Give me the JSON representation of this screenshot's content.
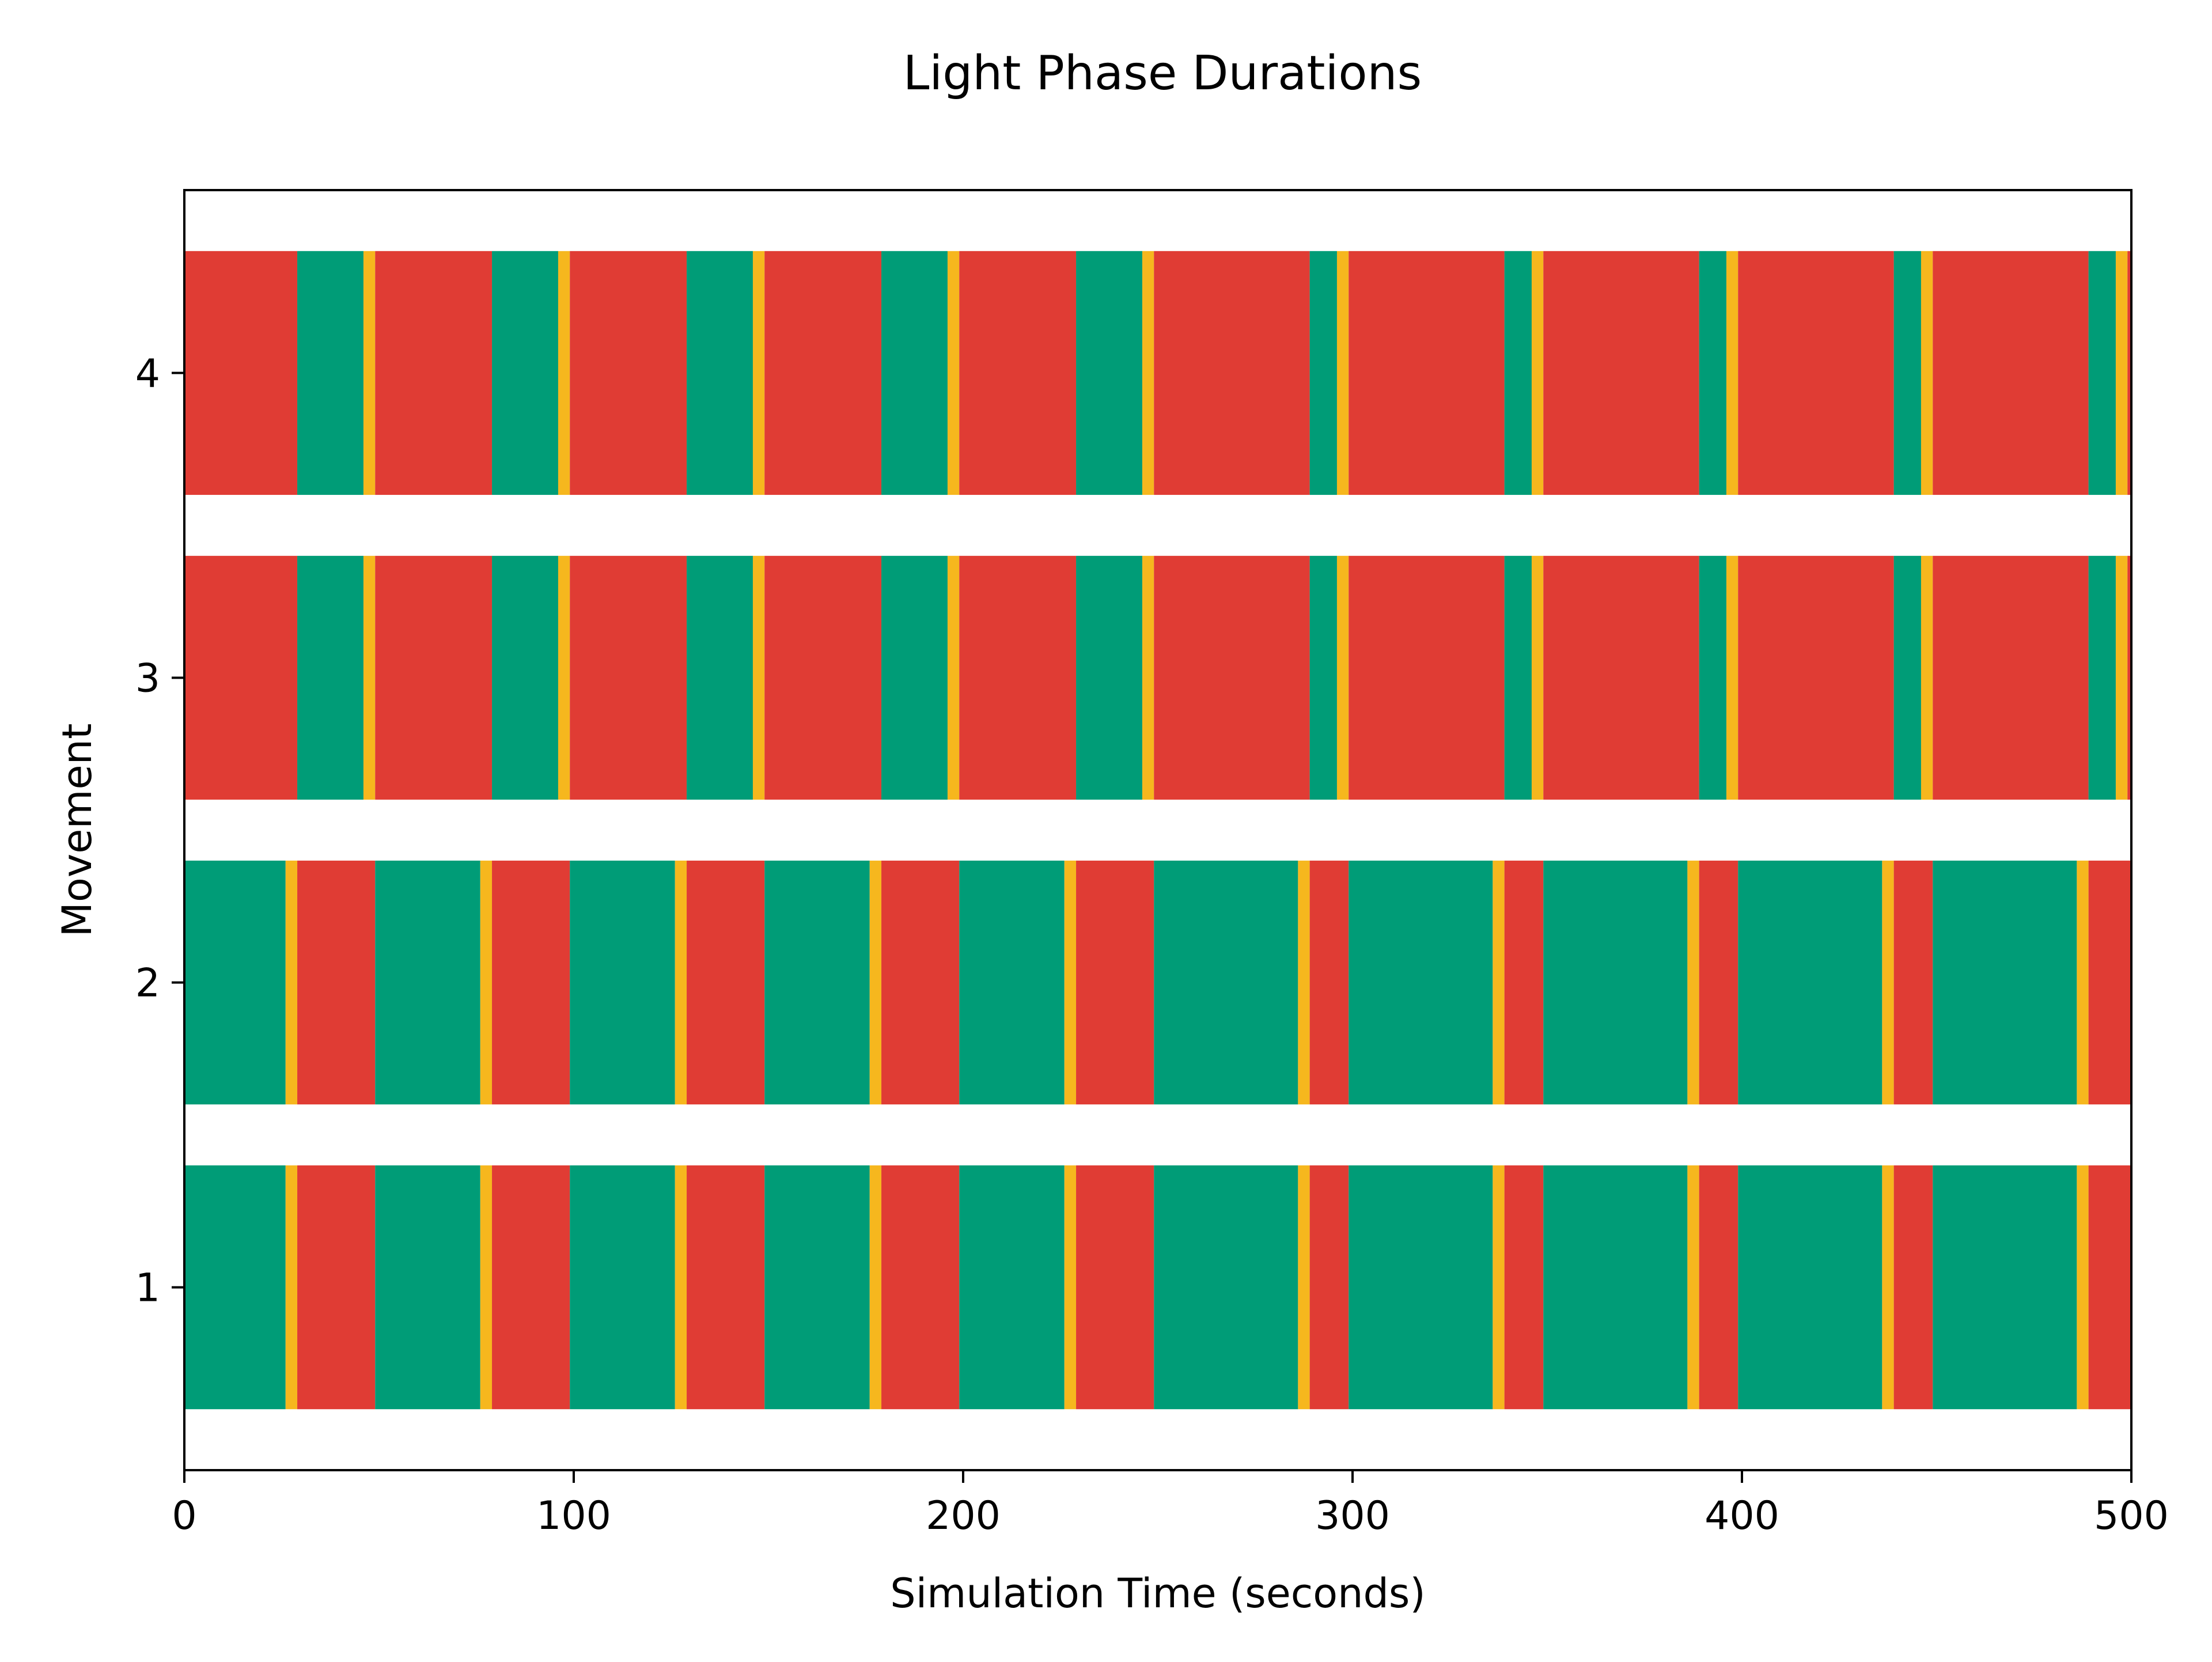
{
  "chart_data": {
    "type": "timeline",
    "title": "Light Phase Durations",
    "xlabel": "Simulation Time (seconds)",
    "ylabel": "Movement",
    "xlim": [
      0,
      500
    ],
    "ylim": [
      0.4,
      4.6
    ],
    "xticks": [
      0,
      100,
      200,
      300,
      400,
      500
    ],
    "grid": false,
    "colors": {
      "red": "#E03C34",
      "green": "#009C77",
      "yellow": "#F6B71E"
    },
    "categories": [
      "1",
      "2",
      "3",
      "4"
    ],
    "series": [
      {
        "category": "1",
        "phases": [
          {
            "color": "green",
            "start": 0,
            "end": 26
          },
          {
            "color": "yellow",
            "start": 26,
            "end": 29
          },
          {
            "color": "red",
            "start": 29,
            "end": 49
          },
          {
            "color": "green",
            "start": 49,
            "end": 76
          },
          {
            "color": "yellow",
            "start": 76,
            "end": 79
          },
          {
            "color": "red",
            "start": 79,
            "end": 99
          },
          {
            "color": "green",
            "start": 99,
            "end": 126
          },
          {
            "color": "yellow",
            "start": 126,
            "end": 129
          },
          {
            "color": "red",
            "start": 129,
            "end": 149
          },
          {
            "color": "green",
            "start": 149,
            "end": 176
          },
          {
            "color": "yellow",
            "start": 176,
            "end": 179
          },
          {
            "color": "red",
            "start": 179,
            "end": 199
          },
          {
            "color": "green",
            "start": 199,
            "end": 226
          },
          {
            "color": "yellow",
            "start": 226,
            "end": 229
          },
          {
            "color": "red",
            "start": 229,
            "end": 249
          },
          {
            "color": "green",
            "start": 249,
            "end": 286
          },
          {
            "color": "yellow",
            "start": 286,
            "end": 289
          },
          {
            "color": "red",
            "start": 289,
            "end": 299
          },
          {
            "color": "green",
            "start": 299,
            "end": 336
          },
          {
            "color": "yellow",
            "start": 336,
            "end": 339
          },
          {
            "color": "red",
            "start": 339,
            "end": 349
          },
          {
            "color": "green",
            "start": 349,
            "end": 386
          },
          {
            "color": "yellow",
            "start": 386,
            "end": 389
          },
          {
            "color": "red",
            "start": 389,
            "end": 399
          },
          {
            "color": "green",
            "start": 399,
            "end": 436
          },
          {
            "color": "yellow",
            "start": 436,
            "end": 439
          },
          {
            "color": "red",
            "start": 439,
            "end": 449
          },
          {
            "color": "green",
            "start": 449,
            "end": 486
          },
          {
            "color": "yellow",
            "start": 486,
            "end": 489
          },
          {
            "color": "red",
            "start": 489,
            "end": 500
          }
        ]
      },
      {
        "category": "2",
        "phases": [
          {
            "color": "green",
            "start": 0,
            "end": 26
          },
          {
            "color": "yellow",
            "start": 26,
            "end": 29
          },
          {
            "color": "red",
            "start": 29,
            "end": 49
          },
          {
            "color": "green",
            "start": 49,
            "end": 76
          },
          {
            "color": "yellow",
            "start": 76,
            "end": 79
          },
          {
            "color": "red",
            "start": 79,
            "end": 99
          },
          {
            "color": "green",
            "start": 99,
            "end": 126
          },
          {
            "color": "yellow",
            "start": 126,
            "end": 129
          },
          {
            "color": "red",
            "start": 129,
            "end": 149
          },
          {
            "color": "green",
            "start": 149,
            "end": 176
          },
          {
            "color": "yellow",
            "start": 176,
            "end": 179
          },
          {
            "color": "red",
            "start": 179,
            "end": 199
          },
          {
            "color": "green",
            "start": 199,
            "end": 226
          },
          {
            "color": "yellow",
            "start": 226,
            "end": 229
          },
          {
            "color": "red",
            "start": 229,
            "end": 249
          },
          {
            "color": "green",
            "start": 249,
            "end": 286
          },
          {
            "color": "yellow",
            "start": 286,
            "end": 289
          },
          {
            "color": "red",
            "start": 289,
            "end": 299
          },
          {
            "color": "green",
            "start": 299,
            "end": 336
          },
          {
            "color": "yellow",
            "start": 336,
            "end": 339
          },
          {
            "color": "red",
            "start": 339,
            "end": 349
          },
          {
            "color": "green",
            "start": 349,
            "end": 386
          },
          {
            "color": "yellow",
            "start": 386,
            "end": 389
          },
          {
            "color": "red",
            "start": 389,
            "end": 399
          },
          {
            "color": "green",
            "start": 399,
            "end": 436
          },
          {
            "color": "yellow",
            "start": 436,
            "end": 439
          },
          {
            "color": "red",
            "start": 439,
            "end": 449
          },
          {
            "color": "green",
            "start": 449,
            "end": 486
          },
          {
            "color": "yellow",
            "start": 486,
            "end": 489
          },
          {
            "color": "red",
            "start": 489,
            "end": 500
          }
        ]
      },
      {
        "category": "3",
        "phases": [
          {
            "color": "red",
            "start": 0,
            "end": 29
          },
          {
            "color": "green",
            "start": 29,
            "end": 46
          },
          {
            "color": "yellow",
            "start": 46,
            "end": 49
          },
          {
            "color": "red",
            "start": 49,
            "end": 79
          },
          {
            "color": "green",
            "start": 79,
            "end": 96
          },
          {
            "color": "yellow",
            "start": 96,
            "end": 99
          },
          {
            "color": "red",
            "start": 99,
            "end": 129
          },
          {
            "color": "green",
            "start": 129,
            "end": 146
          },
          {
            "color": "yellow",
            "start": 146,
            "end": 149
          },
          {
            "color": "red",
            "start": 149,
            "end": 179
          },
          {
            "color": "green",
            "start": 179,
            "end": 196
          },
          {
            "color": "yellow",
            "start": 196,
            "end": 199
          },
          {
            "color": "red",
            "start": 199,
            "end": 229
          },
          {
            "color": "green",
            "start": 229,
            "end": 246
          },
          {
            "color": "yellow",
            "start": 246,
            "end": 249
          },
          {
            "color": "red",
            "start": 249,
            "end": 289
          },
          {
            "color": "green",
            "start": 289,
            "end": 296
          },
          {
            "color": "yellow",
            "start": 296,
            "end": 299
          },
          {
            "color": "red",
            "start": 299,
            "end": 339
          },
          {
            "color": "green",
            "start": 339,
            "end": 346
          },
          {
            "color": "yellow",
            "start": 346,
            "end": 349
          },
          {
            "color": "red",
            "start": 349,
            "end": 389
          },
          {
            "color": "green",
            "start": 389,
            "end": 396
          },
          {
            "color": "yellow",
            "start": 396,
            "end": 399
          },
          {
            "color": "red",
            "start": 399,
            "end": 439
          },
          {
            "color": "green",
            "start": 439,
            "end": 446
          },
          {
            "color": "yellow",
            "start": 446,
            "end": 449
          },
          {
            "color": "red",
            "start": 449,
            "end": 489
          },
          {
            "color": "green",
            "start": 489,
            "end": 496
          },
          {
            "color": "yellow",
            "start": 496,
            "end": 499
          },
          {
            "color": "red",
            "start": 499,
            "end": 500
          }
        ]
      },
      {
        "category": "4",
        "phases": [
          {
            "color": "red",
            "start": 0,
            "end": 29
          },
          {
            "color": "green",
            "start": 29,
            "end": 46
          },
          {
            "color": "yellow",
            "start": 46,
            "end": 49
          },
          {
            "color": "red",
            "start": 49,
            "end": 79
          },
          {
            "color": "green",
            "start": 79,
            "end": 96
          },
          {
            "color": "yellow",
            "start": 96,
            "end": 99
          },
          {
            "color": "red",
            "start": 99,
            "end": 129
          },
          {
            "color": "green",
            "start": 129,
            "end": 146
          },
          {
            "color": "yellow",
            "start": 146,
            "end": 149
          },
          {
            "color": "red",
            "start": 149,
            "end": 179
          },
          {
            "color": "green",
            "start": 179,
            "end": 196
          },
          {
            "color": "yellow",
            "start": 196,
            "end": 199
          },
          {
            "color": "red",
            "start": 199,
            "end": 229
          },
          {
            "color": "green",
            "start": 229,
            "end": 246
          },
          {
            "color": "yellow",
            "start": 246,
            "end": 249
          },
          {
            "color": "red",
            "start": 249,
            "end": 289
          },
          {
            "color": "green",
            "start": 289,
            "end": 296
          },
          {
            "color": "yellow",
            "start": 296,
            "end": 299
          },
          {
            "color": "red",
            "start": 299,
            "end": 339
          },
          {
            "color": "green",
            "start": 339,
            "end": 346
          },
          {
            "color": "yellow",
            "start": 346,
            "end": 349
          },
          {
            "color": "red",
            "start": 349,
            "end": 389
          },
          {
            "color": "green",
            "start": 389,
            "end": 396
          },
          {
            "color": "yellow",
            "start": 396,
            "end": 399
          },
          {
            "color": "red",
            "start": 399,
            "end": 439
          },
          {
            "color": "green",
            "start": 439,
            "end": 446
          },
          {
            "color": "yellow",
            "start": 446,
            "end": 449
          },
          {
            "color": "red",
            "start": 449,
            "end": 489
          },
          {
            "color": "green",
            "start": 489,
            "end": 496
          },
          {
            "color": "yellow",
            "start": 496,
            "end": 499
          },
          {
            "color": "red",
            "start": 499,
            "end": 500
          }
        ]
      }
    ]
  }
}
